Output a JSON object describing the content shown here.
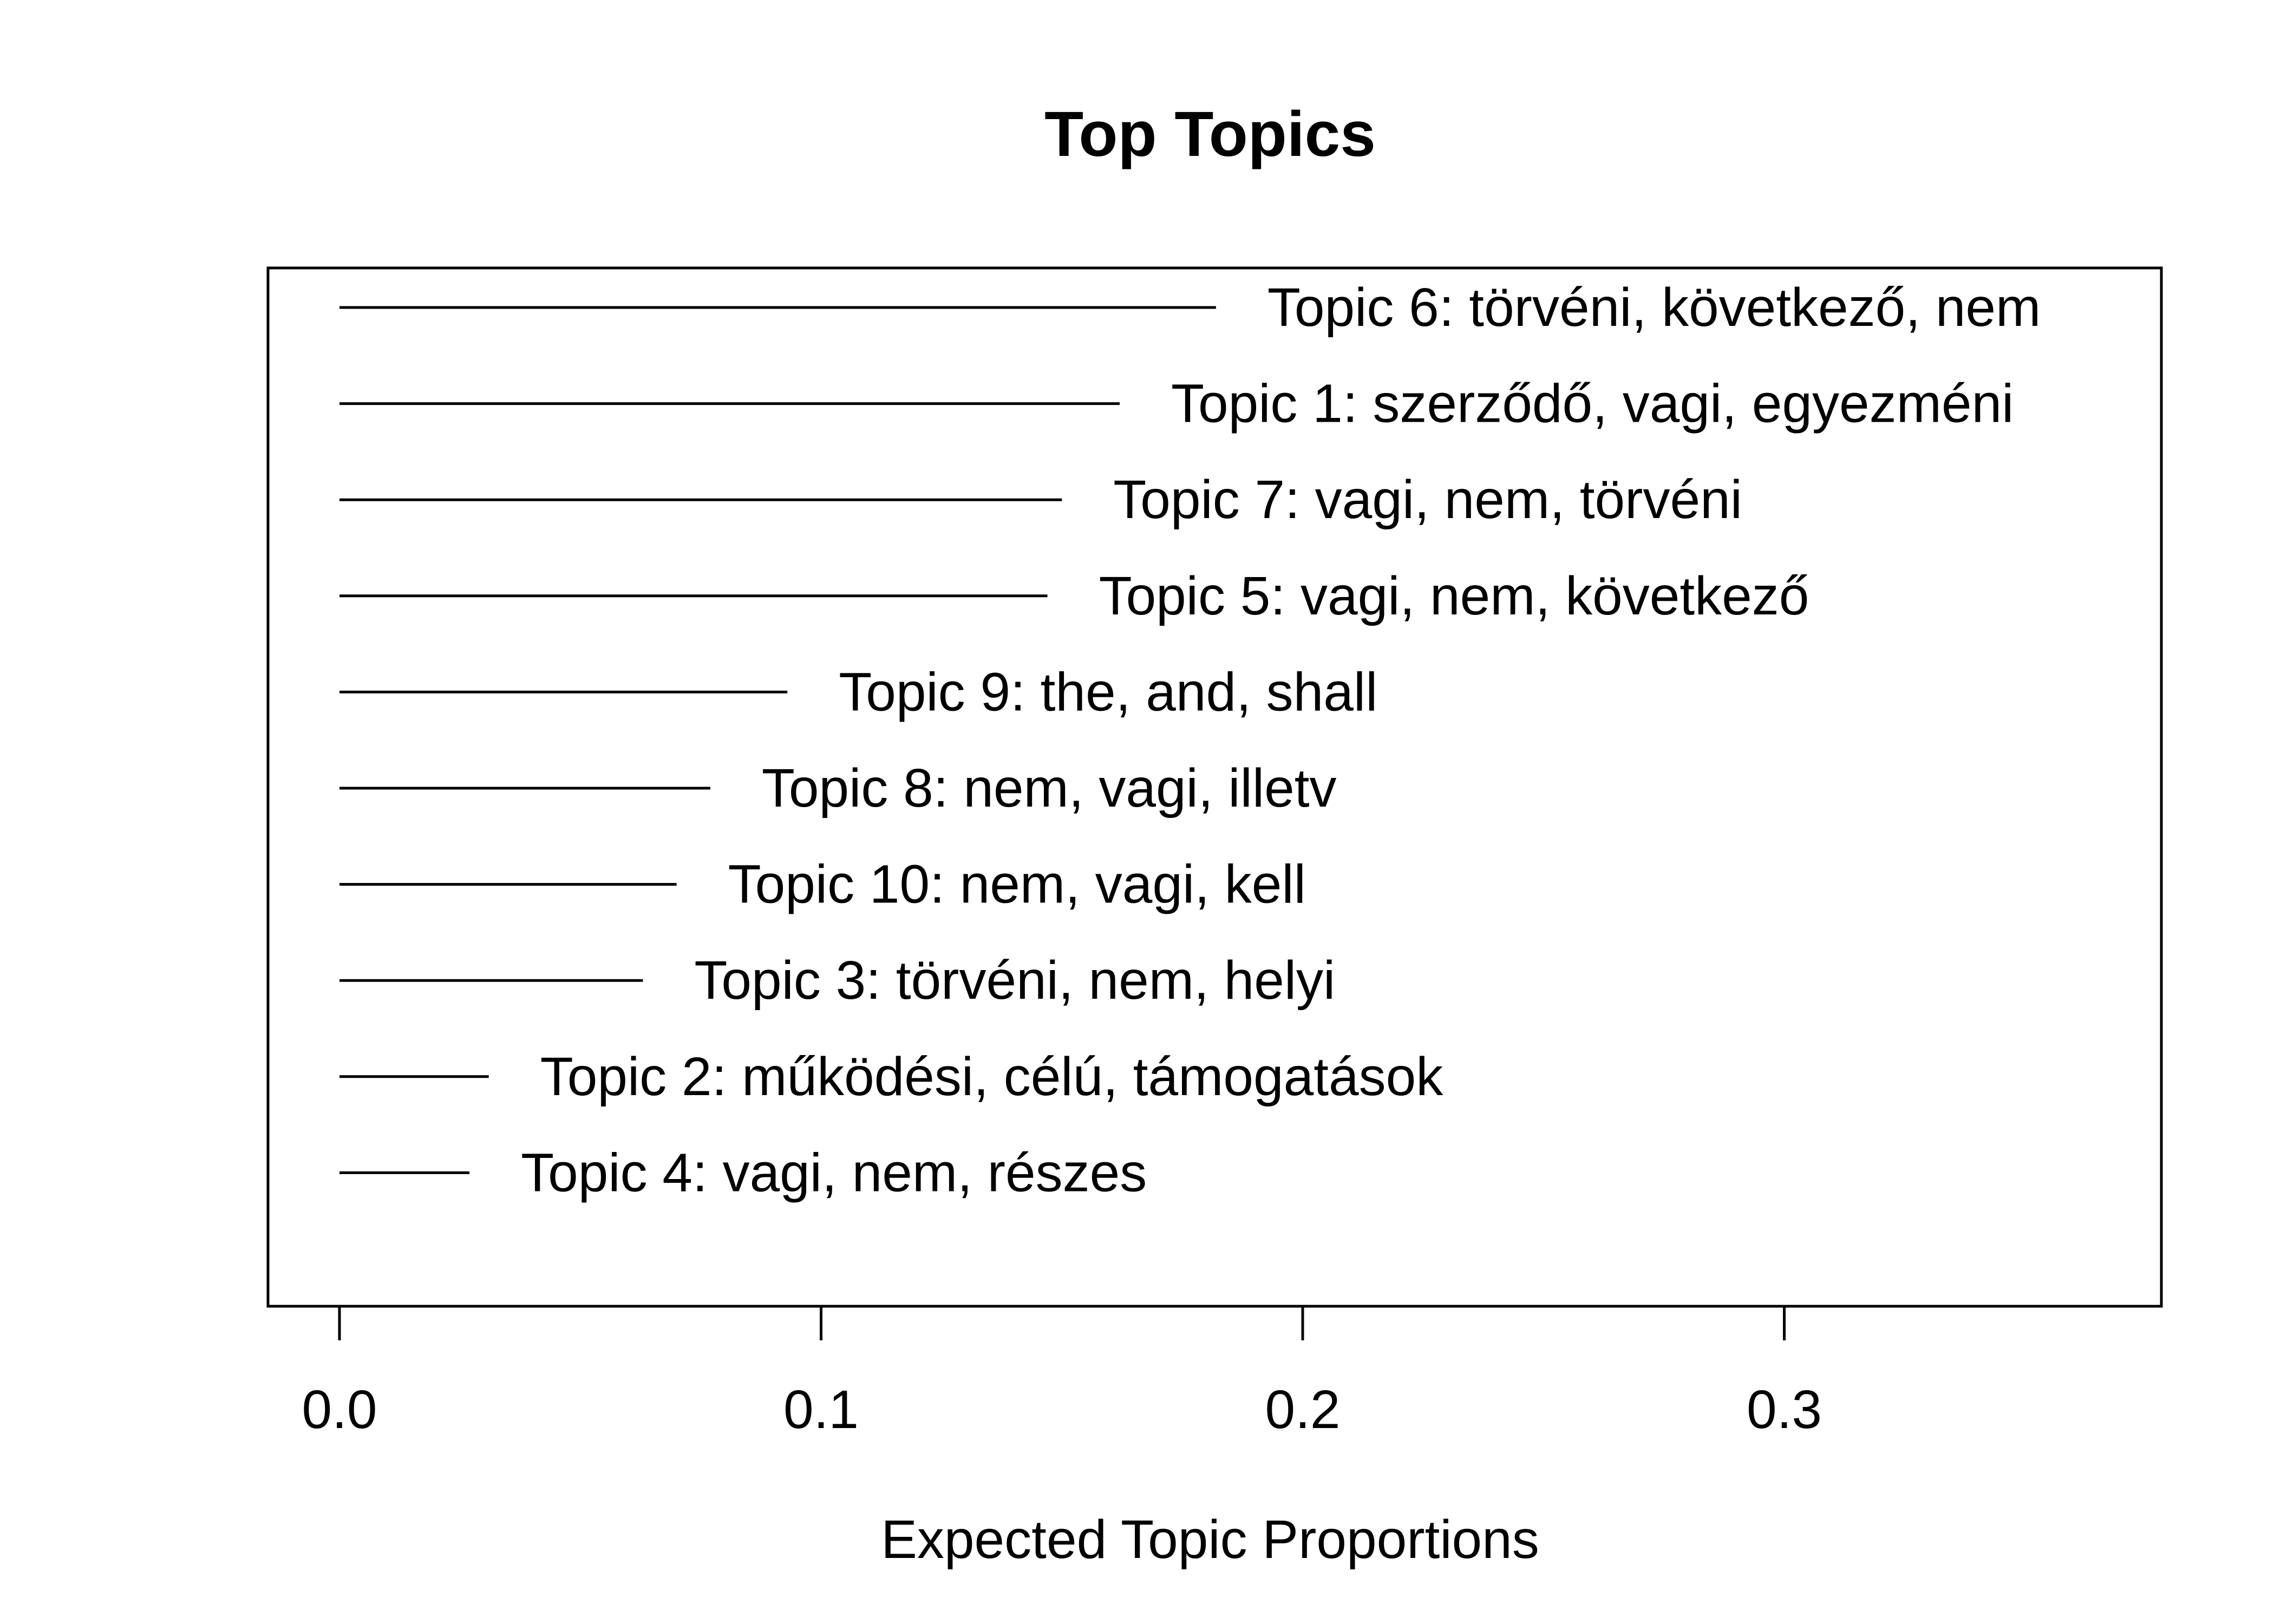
{
  "chart_data": {
    "type": "bar",
    "orientation": "horizontal",
    "title": "Top Topics",
    "xlabel": "Expected Topic Proportions",
    "ylabel": "",
    "xlim": [
      0.0,
      0.38
    ],
    "x_ticks": [
      "0.0",
      "0.1",
      "0.2",
      "0.3"
    ],
    "x_tick_values": [
      0.0,
      0.1,
      0.2,
      0.3
    ],
    "grid": false,
    "legend": "none",
    "categories": [
      "Topic 6: törvéni, következő, nem",
      "Topic 1: szerződő, vagi, egyezméni",
      "Topic 7: vagi, nem, törvéni",
      "Topic 5: vagi, nem, következő",
      "Topic 9: the, and, shall",
      "Topic 8: nem, vagi, illetv",
      "Topic 10: nem, vagi, kell",
      "Topic 3: törvéni, nem, helyi",
      "Topic 2: működési, célú, támogatások",
      "Topic 4: vagi, nem, részes"
    ],
    "values": [
      0.182,
      0.162,
      0.15,
      0.147,
      0.093,
      0.077,
      0.07,
      0.063,
      0.031,
      0.027
    ],
    "colors": {
      "line": "#000000",
      "background": "#ffffff"
    }
  }
}
